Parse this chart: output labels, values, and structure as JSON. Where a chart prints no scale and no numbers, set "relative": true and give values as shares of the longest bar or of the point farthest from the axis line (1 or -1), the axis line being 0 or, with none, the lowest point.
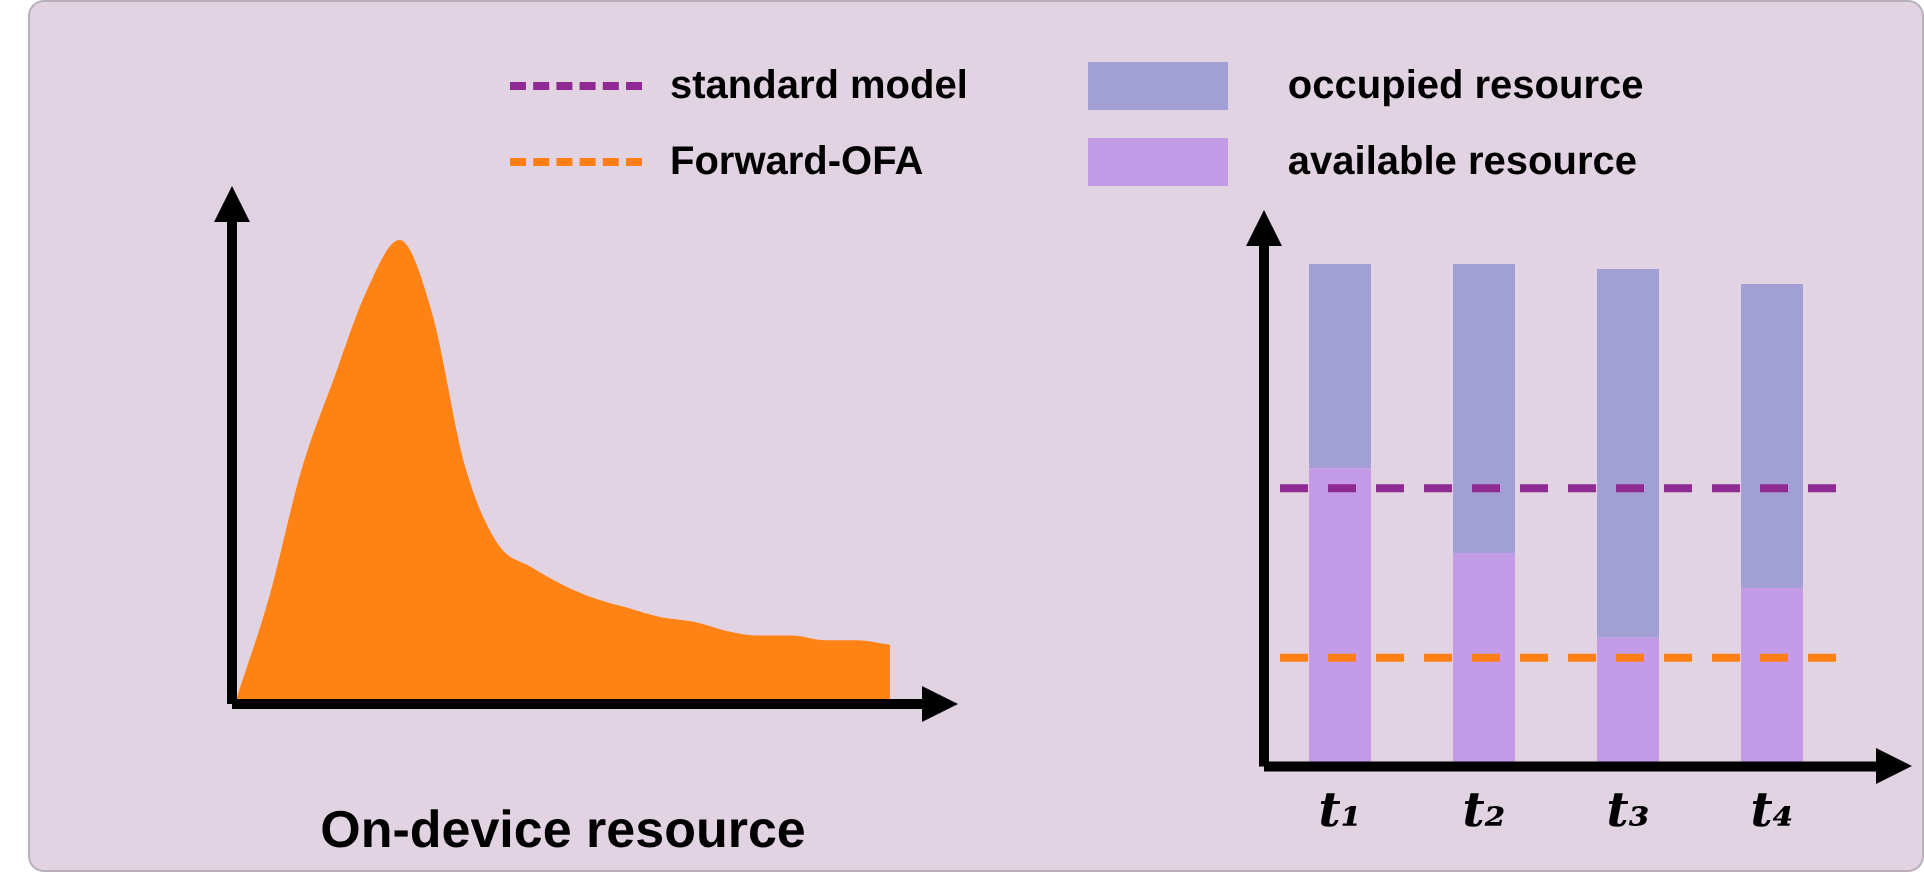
{
  "chart_data": [
    {
      "type": "area",
      "relative": true,
      "xlabel": "On-device resource",
      "categories": [
        null,
        null,
        null,
        null,
        null,
        null,
        null,
        null,
        null,
        null,
        null,
        null,
        null,
        null,
        null,
        null,
        null,
        null,
        null,
        null,
        null
      ],
      "series": [
        {
          "color": "#ff8214",
          "values": [
            0,
            0.22,
            0.5,
            0.7,
            0.89,
            1,
            0.84,
            0.51,
            0.34,
            0.29,
            0.25,
            0.22,
            0.2,
            0.18,
            0.17,
            0.15,
            0.14,
            0.14,
            0.13,
            0.13,
            0.12
          ]
        }
      ]
    },
    {
      "type": "bar",
      "stacked": true,
      "relative": true,
      "legend": "top",
      "categories": [
        "t₁",
        "t₂",
        "t₃",
        "t₄"
      ],
      "series": [
        {
          "name": "available resource",
          "color": "#c49be6",
          "values": [
            0.59,
            0.42,
            0.25,
            0.35
          ]
        },
        {
          "name": "occupied resource",
          "color": "#a29fd5",
          "values": [
            0.41,
            0.58,
            0.74,
            0.61
          ]
        }
      ],
      "ref_lines": [
        {
          "axis": "y",
          "value": 0.55,
          "label": "standard model",
          "color": "#8e2a92",
          "line_style": "dashed"
        },
        {
          "axis": "y",
          "value": 0.21,
          "label": "Forward-OFA",
          "color": "#ff7f16",
          "line_style": "dashed"
        }
      ]
    }
  ]
}
